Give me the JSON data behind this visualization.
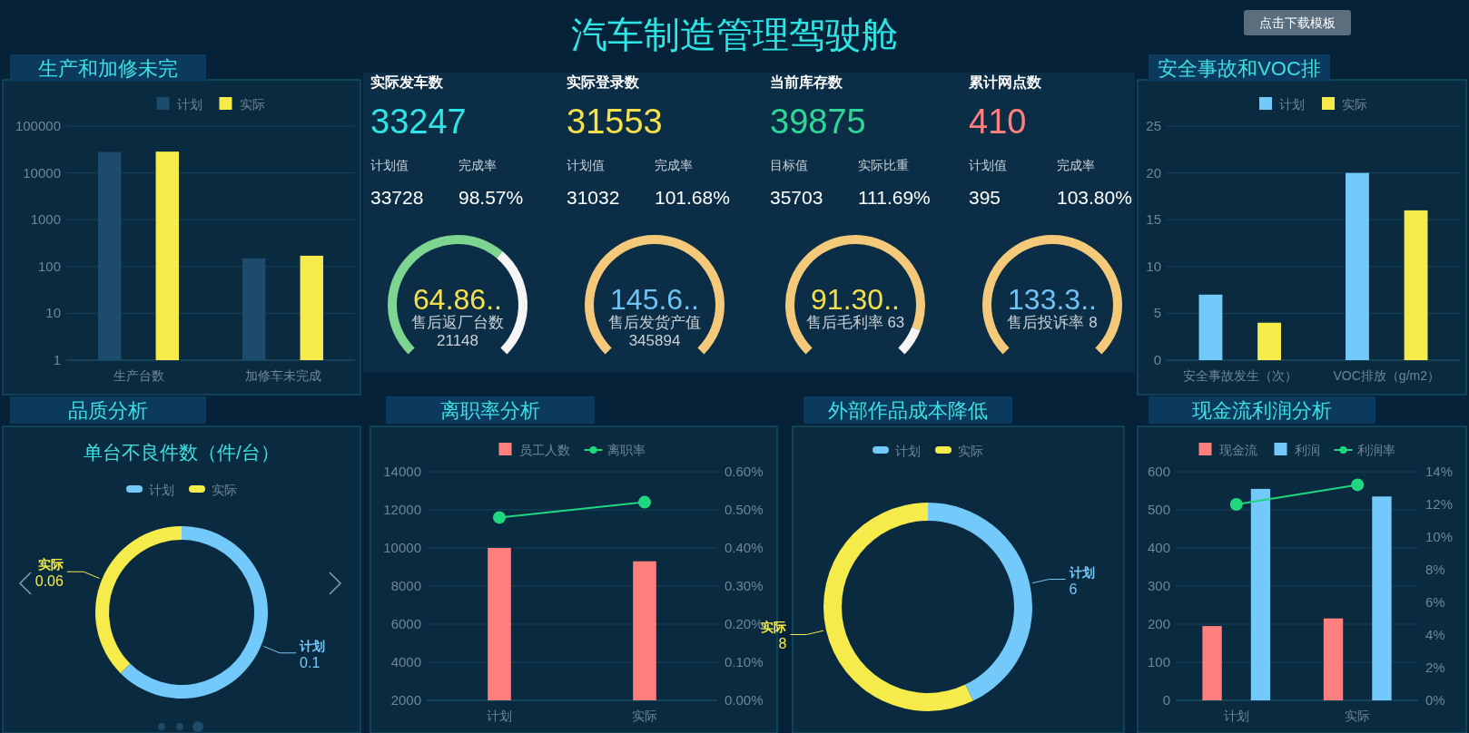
{
  "chart_data": [
    {
      "type": "other",
      "title": "汽车制造管理驾驶舱",
      "annotations": [
        "点击下载模板"
      ]
    },
    {
      "type": "bar",
      "title": "生产和加修未完",
      "categories": [
        "生产台数",
        "加修车未完成"
      ],
      "log": true,
      "ylim": [
        1,
        100000
      ],
      "yticks": [
        1,
        10,
        100,
        1000,
        10000,
        100000
      ],
      "grid": "y",
      "legend": "top",
      "series": [
        {
          "name": "计划",
          "color": "#1d4b6b",
          "values": [
            28000,
            150
          ]
        },
        {
          "name": "实际",
          "color": "#f5ec4c",
          "values": [
            28500,
            170
          ]
        }
      ]
    },
    {
      "type": "other",
      "annotations": [
        "实际发车数",
        "33247",
        "计划值",
        "完成率",
        "33728",
        "98.57%",
        "实际登录数",
        "31553",
        "计划值",
        "完成率",
        "31032",
        "101.68%",
        "当前库存数",
        "39875",
        "目标值",
        "实际比重",
        "35703",
        "111.69%",
        "累计网点数",
        "410",
        "计划值",
        "完成率",
        "395",
        "103.80%"
      ]
    },
    {
      "type": "donut",
      "categories": [
        null,
        null
      ],
      "values": [
        64.86,
        35.14
      ],
      "colors": [
        "#7ed491",
        "#f5f5f5"
      ],
      "annotations": [
        "64.86..",
        "售后返厂台数",
        "21148"
      ]
    },
    {
      "type": "pie",
      "categories": [
        null
      ],
      "values": [
        100
      ],
      "colors": [
        "#f5c97a"
      ],
      "annotations": [
        "145.6..",
        "售后发货产值",
        "345894"
      ]
    },
    {
      "type": "donut",
      "categories": [
        null,
        null
      ],
      "values": [
        91.3,
        8.7
      ],
      "colors": [
        "#f5c97a",
        "#f5f5f5"
      ],
      "annotations": [
        "91.30..",
        "售后毛利率 63"
      ]
    },
    {
      "type": "pie",
      "categories": [
        null
      ],
      "values": [
        100
      ],
      "colors": [
        "#f5c97a"
      ],
      "annotations": [
        "133.3..",
        "售后投诉率 8"
      ]
    },
    {
      "type": "bar",
      "title": "安全事故和VOC排",
      "categories": [
        "安全事故发生（次）",
        "VOC排放（g/m2）"
      ],
      "ylim": [
        0,
        25
      ],
      "yticks": [
        0,
        5,
        10,
        15,
        20,
        25
      ],
      "grid": "y",
      "legend": "top",
      "series": [
        {
          "name": "计划",
          "color": "#73c9fa",
          "values": [
            7,
            20
          ]
        },
        {
          "name": "实际",
          "color": "#f5ec4c",
          "values": [
            4,
            16
          ]
        }
      ]
    },
    {
      "type": "donut",
      "title": "品质分析",
      "subtitle": "单台不良件数（件/台）",
      "categories": [
        "计划",
        "实际"
      ],
      "values": [
        0.1,
        0.06
      ],
      "colors": [
        "#73c9fa",
        "#f5ec4c"
      ],
      "data_labels": true,
      "legend": "top"
    },
    {
      "type": "bar",
      "title": "离职率分析",
      "categories": [
        "计划",
        "实际"
      ],
      "ylim": [
        2000,
        14000
      ],
      "yticks": [
        2000,
        4000,
        6000,
        8000,
        10000,
        12000,
        14000
      ],
      "y2lim": [
        0,
        0.6
      ],
      "y2ticks": [
        {
          "value": 0,
          "label": "0.00%"
        },
        {
          "value": 0.1,
          "label": "0.10%"
        },
        {
          "value": 0.2,
          "label": "0.20%"
        },
        {
          "value": 0.3,
          "label": "0.30%"
        },
        {
          "value": 0.4,
          "label": "0.40%"
        },
        {
          "value": 0.5,
          "label": "0.50%"
        },
        {
          "value": 0.6,
          "label": "0.60%"
        }
      ],
      "grid": "y",
      "legend": "top",
      "marker": "circle",
      "series": [
        {
          "name": "员工人数",
          "color": "#ff7f7f",
          "values": [
            10000,
            9300
          ]
        },
        {
          "name": "离职率",
          "type": "line",
          "axis": "y2",
          "color": "#1fd77f",
          "values": [
            0.48,
            0.52
          ]
        }
      ]
    },
    {
      "type": "donut",
      "title": "外部作品成本降低",
      "categories": [
        "计划",
        "实际"
      ],
      "values": [
        6,
        8
      ],
      "colors": [
        "#73c9fa",
        "#f5ec4c"
      ],
      "data_labels": true,
      "legend": "top"
    },
    {
      "type": "bar",
      "title": "现金流利润分析",
      "categories": [
        "计划",
        "实际"
      ],
      "ylim": [
        0,
        600
      ],
      "yticks": [
        0,
        100,
        200,
        300,
        400,
        500,
        600
      ],
      "y2lim": [
        0,
        14
      ],
      "y2ticks": [
        {
          "value": 0,
          "label": "0%"
        },
        {
          "value": 2,
          "label": "2%"
        },
        {
          "value": 4,
          "label": "4%"
        },
        {
          "value": 6,
          "label": "6%"
        },
        {
          "value": 8,
          "label": "8%"
        },
        {
          "value": 10,
          "label": "10%"
        },
        {
          "value": 12,
          "label": "12%"
        },
        {
          "value": 14,
          "label": "14%"
        }
      ],
      "grid": "y",
      "legend": "top",
      "marker": "circle",
      "series": [
        {
          "name": "现金流",
          "color": "#ff7f7f",
          "values": [
            195,
            215
          ]
        },
        {
          "name": "利润",
          "color": "#73c9fa",
          "values": [
            555,
            535
          ]
        },
        {
          "name": "利润率",
          "type": "line",
          "axis": "y2",
          "color": "#1fd77f",
          "values": [
            12,
            13.2
          ]
        }
      ]
    }
  ]
}
